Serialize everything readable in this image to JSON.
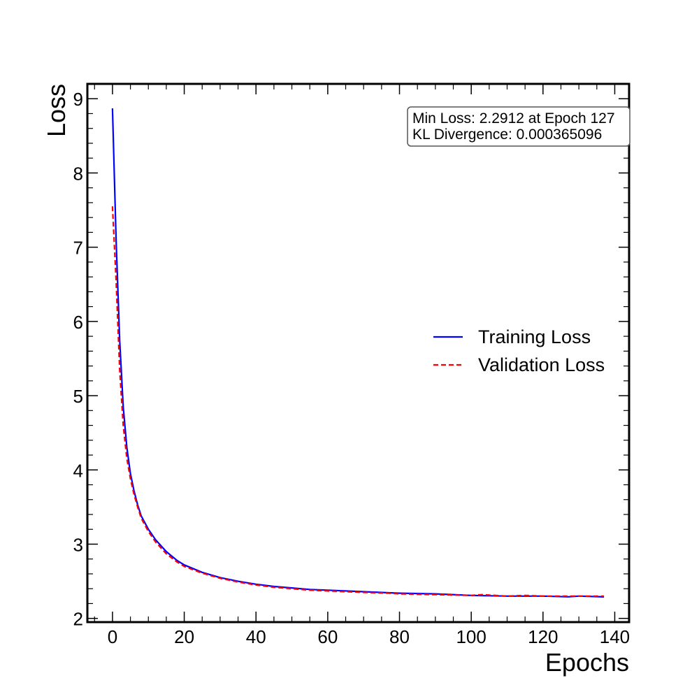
{
  "chart_data": {
    "type": "line",
    "title": "",
    "xlabel": "Epochs",
    "ylabel": "Loss",
    "xlim": [
      -7,
      144
    ],
    "ylim": [
      1.95,
      9.2
    ],
    "x_ticks": [
      0,
      20,
      40,
      60,
      80,
      100,
      120,
      140
    ],
    "y_ticks": [
      2,
      3,
      4,
      5,
      6,
      7,
      8,
      9
    ],
    "grid": false,
    "legend_position": "center-right",
    "annotation": {
      "line1": "Min Loss: 2.2912 at Epoch 127",
      "line2": "KL Divergence: 0.000365096"
    },
    "series": [
      {
        "name": "Training Loss",
        "color": "#0000ff",
        "style": "solid",
        "x": [
          0,
          1,
          2,
          3,
          4,
          5,
          6,
          7,
          8,
          10,
          12,
          15,
          18,
          20,
          25,
          30,
          35,
          40,
          45,
          50,
          55,
          60,
          70,
          80,
          90,
          100,
          110,
          120,
          127,
          130,
          137
        ],
        "y": [
          8.87,
          7.1,
          5.75,
          4.85,
          4.3,
          3.95,
          3.72,
          3.53,
          3.38,
          3.2,
          3.06,
          2.9,
          2.78,
          2.72,
          2.62,
          2.55,
          2.5,
          2.46,
          2.43,
          2.41,
          2.39,
          2.38,
          2.36,
          2.34,
          2.33,
          2.31,
          2.3,
          2.3,
          2.2912,
          2.3,
          2.29
        ]
      },
      {
        "name": "Validation Loss",
        "color": "#ff0000",
        "style": "dashed",
        "x": [
          0,
          1,
          2,
          3,
          4,
          5,
          6,
          7,
          8,
          10,
          12,
          15,
          18,
          20,
          25,
          30,
          35,
          40,
          45,
          50,
          55,
          60,
          70,
          77,
          80,
          90,
          100,
          103,
          110,
          115,
          120,
          125,
          130,
          137
        ],
        "y": [
          7.55,
          6.55,
          5.35,
          4.6,
          4.15,
          3.88,
          3.67,
          3.5,
          3.35,
          3.17,
          3.03,
          2.87,
          2.76,
          2.7,
          2.61,
          2.54,
          2.49,
          2.45,
          2.42,
          2.4,
          2.38,
          2.37,
          2.35,
          2.34,
          2.33,
          2.32,
          2.31,
          2.32,
          2.3,
          2.31,
          2.3,
          2.3,
          2.3,
          2.3
        ]
      }
    ]
  }
}
